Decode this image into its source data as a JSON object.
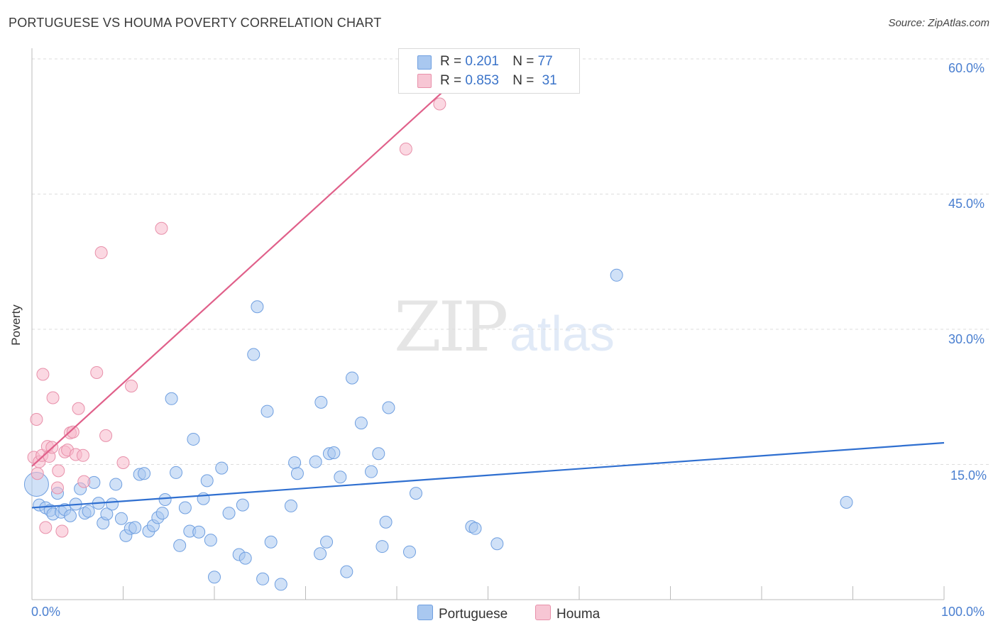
{
  "header": {
    "title": "PORTUGUESE VS HOUMA POVERTY CORRELATION CHART",
    "source": "Source: ZipAtlas.com"
  },
  "watermark": {
    "zip": "ZIP",
    "atlas": "atlas"
  },
  "legend": {
    "portuguese": {
      "r_label": "R =",
      "r_value": "0.201",
      "n_label": "N =",
      "n_value": "77"
    },
    "houma": {
      "r_label": "R =",
      "r_value": "0.853",
      "n_label": "N =",
      "n_value": "31"
    }
  },
  "colors": {
    "portuguese_fill": "#a9c8f0",
    "portuguese_stroke": "#6f9fe0",
    "portuguese_line": "#2f6fd0",
    "houma_fill": "#f7b8ca",
    "houma_stroke": "#e890aa",
    "houma_line": "#e0608a",
    "grid": "#dddddd",
    "tick_text": "#4a7fd0"
  },
  "chart_data": {
    "type": "scatter",
    "xlabel": "",
    "ylabel": "Poverty",
    "xlim": [
      0,
      100
    ],
    "ylim": [
      0,
      60
    ],
    "x_tick_labels": [
      "0.0%",
      "100.0%"
    ],
    "y_tick_labels": [
      "15.0%",
      "30.0%",
      "45.0%",
      "60.0%"
    ],
    "y_ticks": [
      15,
      30,
      45,
      60
    ],
    "grid": true,
    "legend_position": "top-center",
    "series": [
      {
        "name": "Portuguese",
        "color": "#a9c8f0",
        "trend": {
          "x": [
            0,
            100
          ],
          "y": [
            10.2,
            17.4
          ]
        },
        "points": [
          [
            0.5,
            12.8
          ],
          [
            0.8,
            10.5
          ],
          [
            1.5,
            10.2
          ],
          [
            2.0,
            9.9
          ],
          [
            2.3,
            9.5
          ],
          [
            2.8,
            11.8
          ],
          [
            3.2,
            9.7
          ],
          [
            3.6,
            10.0
          ],
          [
            4.2,
            9.3
          ],
          [
            4.8,
            10.6
          ],
          [
            5.3,
            12.3
          ],
          [
            5.8,
            9.6
          ],
          [
            6.2,
            9.8
          ],
          [
            6.8,
            13.0
          ],
          [
            7.3,
            10.7
          ],
          [
            7.8,
            8.5
          ],
          [
            8.2,
            9.5
          ],
          [
            8.8,
            10.6
          ],
          [
            9.2,
            12.8
          ],
          [
            9.8,
            9.0
          ],
          [
            10.3,
            7.1
          ],
          [
            10.8,
            7.9
          ],
          [
            11.3,
            8.0
          ],
          [
            11.8,
            13.9
          ],
          [
            12.3,
            14.0
          ],
          [
            12.8,
            7.6
          ],
          [
            13.3,
            8.2
          ],
          [
            13.8,
            9.1
          ],
          [
            14.3,
            9.6
          ],
          [
            14.6,
            11.1
          ],
          [
            15.3,
            22.3
          ],
          [
            15.8,
            14.1
          ],
          [
            16.2,
            6.0
          ],
          [
            16.8,
            10.2
          ],
          [
            17.3,
            7.6
          ],
          [
            17.7,
            17.8
          ],
          [
            18.3,
            7.5
          ],
          [
            18.8,
            11.2
          ],
          [
            19.2,
            13.2
          ],
          [
            19.6,
            6.6
          ],
          [
            20.0,
            2.5
          ],
          [
            20.8,
            14.6
          ],
          [
            21.6,
            9.6
          ],
          [
            22.7,
            5.0
          ],
          [
            23.1,
            10.5
          ],
          [
            23.4,
            4.6
          ],
          [
            24.3,
            27.2
          ],
          [
            24.7,
            32.5
          ],
          [
            25.3,
            2.3
          ],
          [
            25.8,
            20.9
          ],
          [
            26.2,
            6.4
          ],
          [
            27.3,
            1.7
          ],
          [
            28.4,
            10.4
          ],
          [
            28.8,
            15.2
          ],
          [
            29.1,
            14.0
          ],
          [
            31.1,
            15.3
          ],
          [
            31.6,
            5.1
          ],
          [
            31.7,
            21.9
          ],
          [
            32.3,
            6.4
          ],
          [
            32.6,
            16.2
          ],
          [
            33.1,
            16.3
          ],
          [
            33.8,
            13.6
          ],
          [
            34.5,
            3.1
          ],
          [
            35.1,
            24.6
          ],
          [
            36.1,
            19.6
          ],
          [
            37.2,
            14.2
          ],
          [
            38.0,
            16.2
          ],
          [
            38.4,
            5.9
          ],
          [
            38.8,
            8.6
          ],
          [
            39.1,
            21.3
          ],
          [
            41.4,
            5.3
          ],
          [
            42.1,
            11.8
          ],
          [
            48.2,
            8.1
          ],
          [
            48.6,
            7.9
          ],
          [
            51.0,
            6.2
          ],
          [
            64.1,
            36.0
          ],
          [
            89.3,
            10.8
          ]
        ]
      },
      {
        "name": "Houma",
        "color": "#f7b8ca",
        "trend": {
          "x": [
            0,
            49
          ],
          "y": [
            14.8,
            60.0
          ]
        },
        "points": [
          [
            0.2,
            15.8
          ],
          [
            0.5,
            20.0
          ],
          [
            0.6,
            14.0
          ],
          [
            0.8,
            15.3
          ],
          [
            1.1,
            16.0
          ],
          [
            1.2,
            25.0
          ],
          [
            1.5,
            8.0
          ],
          [
            1.7,
            17.0
          ],
          [
            1.9,
            15.9
          ],
          [
            2.2,
            16.9
          ],
          [
            2.3,
            22.4
          ],
          [
            2.8,
            12.4
          ],
          [
            2.9,
            14.3
          ],
          [
            3.3,
            7.6
          ],
          [
            3.6,
            16.4
          ],
          [
            3.9,
            16.6
          ],
          [
            4.2,
            18.5
          ],
          [
            4.5,
            18.6
          ],
          [
            4.8,
            16.1
          ],
          [
            5.1,
            21.2
          ],
          [
            5.6,
            16.0
          ],
          [
            5.7,
            13.1
          ],
          [
            7.1,
            25.2
          ],
          [
            7.6,
            38.5
          ],
          [
            8.1,
            18.2
          ],
          [
            10.0,
            15.2
          ],
          [
            10.9,
            23.7
          ],
          [
            14.2,
            41.2
          ],
          [
            41.0,
            50.0
          ],
          [
            44.7,
            55.0
          ],
          [
            47.0,
            59.0
          ]
        ]
      }
    ]
  }
}
